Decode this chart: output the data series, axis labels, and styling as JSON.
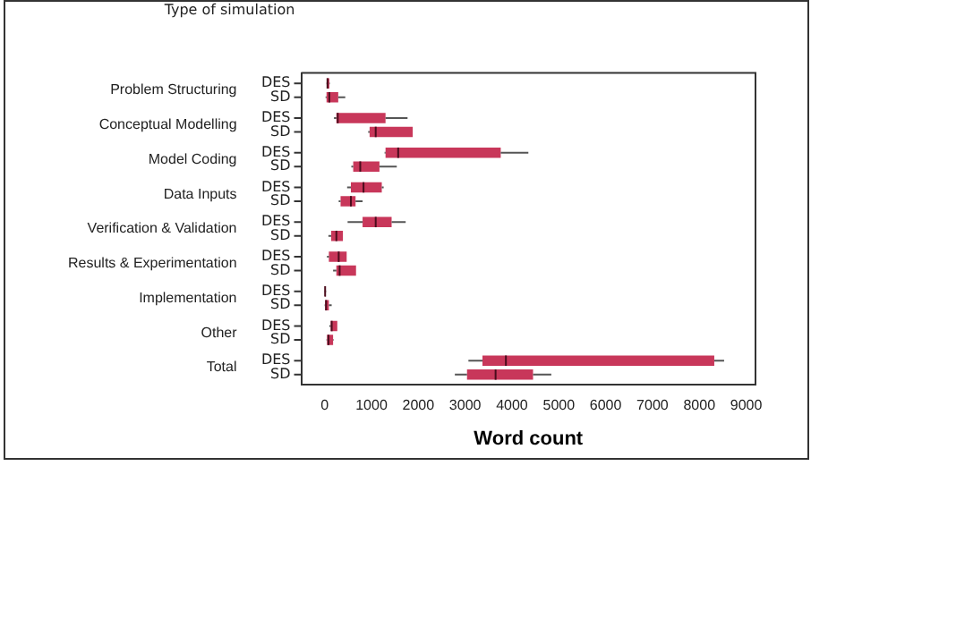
{
  "chart_data": {
    "type": "box",
    "orientation": "horizontal",
    "legend_title": "Type of simulation",
    "xlabel": "Word count",
    "categories": [
      "Problem Structuring",
      "Conceptual Modelling",
      "Model Coding",
      "Data Inputs",
      "Verification & Validation",
      "Results & Experimentation",
      "Implementation",
      "Other",
      "Total"
    ],
    "xlim": [
      -500,
      9200
    ],
    "xticks": [
      0,
      1000,
      2000,
      3000,
      4000,
      5000,
      6000,
      7000,
      8000,
      9000
    ],
    "grid": false,
    "series": [
      {
        "name": "DES",
        "color": "#c8375a",
        "boxes": [
          {
            "low": 40,
            "q1": 50,
            "median": 60,
            "q3": 100,
            "high": 110
          },
          {
            "low": 200,
            "q1": 250,
            "median": 280,
            "q3": 1300,
            "high": 1770
          },
          {
            "low": 1280,
            "q1": 1300,
            "median": 1570,
            "q3": 3760,
            "high": 4350
          },
          {
            "low": 480,
            "q1": 560,
            "median": 830,
            "q3": 1220,
            "high": 1260
          },
          {
            "low": 490,
            "q1": 810,
            "median": 1090,
            "q3": 1430,
            "high": 1730
          },
          {
            "low": 50,
            "q1": 90,
            "median": 300,
            "q3": 470,
            "high": 470
          },
          {
            "low": 0,
            "q1": 5,
            "median": 10,
            "q3": 25,
            "high": 30
          },
          {
            "low": 100,
            "q1": 130,
            "median": 150,
            "q3": 270,
            "high": 270
          },
          {
            "low": 3070,
            "q1": 3370,
            "median": 3870,
            "q3": 8320,
            "high": 8530
          }
        ]
      },
      {
        "name": "SD",
        "color": "#c8375a",
        "boxes": [
          {
            "low": 20,
            "q1": 40,
            "median": 100,
            "q3": 290,
            "high": 440
          },
          {
            "low": 930,
            "q1": 960,
            "median": 1090,
            "q3": 1880,
            "high": 1880
          },
          {
            "low": 570,
            "q1": 610,
            "median": 760,
            "q3": 1170,
            "high": 1540
          },
          {
            "low": 300,
            "q1": 340,
            "median": 560,
            "q3": 660,
            "high": 810
          },
          {
            "low": 80,
            "q1": 140,
            "median": 250,
            "q3": 390,
            "high": 390
          },
          {
            "low": 180,
            "q1": 250,
            "median": 320,
            "q3": 670,
            "high": 670
          },
          {
            "low": 0,
            "q1": 10,
            "median": 30,
            "q3": 90,
            "high": 150
          },
          {
            "low": 40,
            "q1": 50,
            "median": 80,
            "q3": 180,
            "high": 190
          },
          {
            "low": 2780,
            "q1": 3040,
            "median": 3650,
            "q3": 4450,
            "high": 4840
          }
        ]
      }
    ]
  }
}
